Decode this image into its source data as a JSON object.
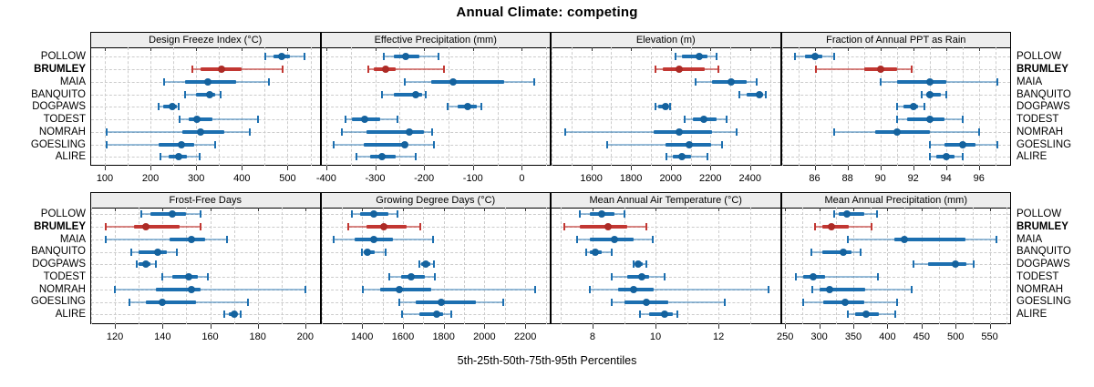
{
  "title": "Annual Climate: competing",
  "xlabel": "5th-25th-50th-75th-95th Percentiles",
  "sites": [
    "POLLOW",
    "BRUMLEY",
    "MAIA",
    "BANQUITO",
    "DOGPAWS",
    "TODEST",
    "NOMRAH",
    "GOESLING",
    "ALIRE"
  ],
  "highlight_site": "BRUMLEY",
  "colors": {
    "series_blue": "#1C6FB0",
    "series_blue_dot": "#14629E",
    "series_blue_faint": "rgba(28,111,176,0.45)",
    "series_red": "#C23732",
    "series_red_dot": "#AD2B26",
    "series_red_faint": "rgba(194,55,50,0.6)",
    "grid": "#CCCCCC",
    "strip_bg": "#EDEDED",
    "panel_border": "#000000",
    "text": "#000000"
  },
  "chart_data": [
    {
      "type": "dotplot-interval",
      "title": "Design Freeze Index (°C)",
      "grid_row": 0,
      "grid_col": 0,
      "xlim": [
        70,
        570
      ],
      "ticks": [
        100,
        200,
        300,
        400,
        500
      ],
      "grid_step": 50,
      "percentile_labels": [
        "p5",
        "p25",
        "p50",
        "p75",
        "p95"
      ],
      "series": [
        {
          "site": "POLLOW",
          "percentiles": [
            451,
            470,
            487,
            505,
            536
          ]
        },
        {
          "site": "BRUMLEY",
          "percentiles": [
            292,
            310,
            355,
            400,
            490
          ]
        },
        {
          "site": "MAIA",
          "percentiles": [
            229,
            275,
            325,
            387,
            459
          ]
        },
        {
          "site": "BANQUITO",
          "percentiles": [
            275,
            300,
            330,
            342,
            353
          ]
        },
        {
          "site": "DOGPAWS",
          "percentiles": [
            218,
            227,
            247,
            257,
            261
          ]
        },
        {
          "site": "TODEST",
          "percentiles": [
            263,
            283,
            302,
            336,
            436
          ]
        },
        {
          "site": "NOMRAH",
          "percentiles": [
            103,
            270,
            309,
            362,
            418
          ]
        },
        {
          "site": "GOESLING",
          "percentiles": [
            103,
            218,
            268,
            296,
            342
          ]
        },
        {
          "site": "ALIRE",
          "percentiles": [
            222,
            240,
            262,
            280,
            308
          ]
        }
      ]
    },
    {
      "type": "dotplot-interval",
      "title": "Effective Precipitation (mm)",
      "grid_row": 0,
      "grid_col": 1,
      "xlim": [
        -410,
        57
      ],
      "ticks": [
        -400,
        -300,
        -200,
        -100,
        0
      ],
      "grid_step": 50,
      "percentile_labels": [
        "p5",
        "p25",
        "p50",
        "p75",
        "p95"
      ],
      "series": [
        {
          "site": "POLLOW",
          "percentiles": [
            -283,
            -262,
            -237,
            -209,
            -170
          ]
        },
        {
          "site": "BRUMLEY",
          "percentiles": [
            -314,
            -302,
            -279,
            -258,
            -159
          ]
        },
        {
          "site": "MAIA",
          "percentiles": [
            -240,
            -185,
            -140,
            -37,
            26
          ]
        },
        {
          "site": "BANQUITO",
          "percentiles": [
            -286,
            -262,
            -218,
            -203,
            -196
          ]
        },
        {
          "site": "DOGPAWS",
          "percentiles": [
            -151,
            -132,
            -110,
            -92,
            -82
          ]
        },
        {
          "site": "TODEST",
          "percentiles": [
            -360,
            -348,
            -322,
            -289,
            -254
          ]
        },
        {
          "site": "NOMRAH",
          "percentiles": [
            -368,
            -317,
            -231,
            -200,
            -183
          ]
        },
        {
          "site": "GOESLING",
          "percentiles": [
            -385,
            -323,
            -240,
            -236,
            -180
          ]
        },
        {
          "site": "ALIRE",
          "percentiles": [
            -338,
            -311,
            -286,
            -258,
            -217
          ]
        }
      ]
    },
    {
      "type": "dotplot-interval",
      "title": "Elevation (m)",
      "grid_row": 0,
      "grid_col": 2,
      "xlim": [
        1400,
        2550
      ],
      "ticks": [
        1600,
        1800,
        2000,
        2200,
        2400
      ],
      "grid_step": 100,
      "percentile_labels": [
        "p5",
        "p25",
        "p50",
        "p75",
        "p95"
      ],
      "series": [
        {
          "site": "POLLOW",
          "percentiles": [
            2024,
            2058,
            2145,
            2186,
            2232
          ]
        },
        {
          "site": "BRUMLEY",
          "percentiles": [
            1921,
            1959,
            2042,
            2171,
            2239
          ]
        },
        {
          "site": "MAIA",
          "percentiles": [
            2126,
            2209,
            2305,
            2383,
            2432
          ]
        },
        {
          "site": "BANQUITO",
          "percentiles": [
            2345,
            2383,
            2447,
            2467,
            2477
          ]
        },
        {
          "site": "DOGPAWS",
          "percentiles": [
            1921,
            1936,
            1974,
            1989,
            1997
          ]
        },
        {
          "site": "TODEST",
          "percentiles": [
            2070,
            2111,
            2168,
            2232,
            2280
          ]
        },
        {
          "site": "NOMRAH",
          "percentiles": [
            1467,
            1914,
            2042,
            2209,
            2330
          ]
        },
        {
          "site": "GOESLING",
          "percentiles": [
            1682,
            1974,
            2095,
            2202,
            2259
          ]
        },
        {
          "site": "ALIRE",
          "percentiles": [
            1979,
            2012,
            2055,
            2103,
            2186
          ]
        }
      ]
    },
    {
      "type": "dotplot-interval",
      "title": "Fraction of Annual PPT as Rain",
      "grid_row": 0,
      "grid_col": 3,
      "xlim": [
        84,
        97.9
      ],
      "ticks": [
        86,
        88,
        90,
        92,
        94,
        96
      ],
      "grid_step": 1,
      "percentile_labels": [
        "p5",
        "p25",
        "p50",
        "p75",
        "p95"
      ],
      "series": [
        {
          "site": "POLLOW",
          "percentiles": [
            84.8,
            85.4,
            86.0,
            86.5,
            87.2
          ]
        },
        {
          "site": "BRUMLEY",
          "percentiles": [
            86.1,
            89.0,
            90.0,
            91.0,
            91.9
          ]
        },
        {
          "site": "MAIA",
          "percentiles": [
            90.0,
            91.0,
            93.0,
            94.0,
            97.1
          ]
        },
        {
          "site": "BANQUITO",
          "percentiles": [
            92.5,
            92.8,
            93.0,
            93.7,
            94.0
          ]
        },
        {
          "site": "DOGPAWS",
          "percentiles": [
            91.0,
            91.4,
            92.0,
            92.3,
            92.7
          ]
        },
        {
          "site": "TODEST",
          "percentiles": [
            91.0,
            91.6,
            93.0,
            93.9,
            95.0
          ]
        },
        {
          "site": "NOMRAH",
          "percentiles": [
            87.2,
            89.7,
            91.0,
            93.0,
            96.0
          ]
        },
        {
          "site": "GOESLING",
          "percentiles": [
            93.0,
            93.9,
            95.0,
            95.8,
            97.1
          ]
        },
        {
          "site": "ALIRE",
          "percentiles": [
            93.0,
            93.4,
            94.0,
            94.5,
            95.0
          ]
        }
      ]
    },
    {
      "type": "dotplot-interval",
      "title": "Frost-Free Days",
      "grid_row": 1,
      "grid_col": 0,
      "xlim": [
        110,
        206
      ],
      "ticks": [
        120,
        140,
        160,
        180,
        200
      ],
      "grid_step": 10,
      "percentile_labels": [
        "p5",
        "p25",
        "p50",
        "p75",
        "p95"
      ],
      "series": [
        {
          "site": "POLLOW",
          "percentiles": [
            131,
            135,
            144,
            150,
            156
          ]
        },
        {
          "site": "BRUMLEY",
          "percentiles": [
            116,
            128,
            133,
            147,
            156
          ]
        },
        {
          "site": "MAIA",
          "percentiles": [
            116,
            143,
            152,
            158,
            167
          ]
        },
        {
          "site": "BANQUITO",
          "percentiles": [
            127,
            130,
            138,
            142,
            146
          ]
        },
        {
          "site": "DOGPAWS",
          "percentiles": [
            129,
            130,
            133,
            135,
            137
          ]
        },
        {
          "site": "TODEST",
          "percentiles": [
            140,
            144,
            151,
            155,
            159
          ]
        },
        {
          "site": "NOMRAH",
          "percentiles": [
            120,
            137,
            152,
            156,
            200
          ]
        },
        {
          "site": "GOESLING",
          "percentiles": [
            126,
            133,
            140,
            154,
            176
          ]
        },
        {
          "site": "ALIRE",
          "percentiles": [
            166,
            168,
            170,
            171,
            173
          ]
        }
      ]
    },
    {
      "type": "dotplot-interval",
      "title": "Growing Degree Days (°C)",
      "grid_row": 1,
      "grid_col": 1,
      "xlim": [
        1200,
        2320
      ],
      "ticks": [
        1400,
        1600,
        1800,
        2000,
        2200
      ],
      "grid_step": 100,
      "percentile_labels": [
        "p5",
        "p25",
        "p50",
        "p75",
        "p95"
      ],
      "series": [
        {
          "site": "POLLOW",
          "percentiles": [
            1348,
            1390,
            1456,
            1530,
            1575
          ]
        },
        {
          "site": "BRUMLEY",
          "percentiles": [
            1330,
            1419,
            1505,
            1619,
            1683
          ]
        },
        {
          "site": "MAIA",
          "percentiles": [
            1261,
            1364,
            1456,
            1553,
            1748
          ]
        },
        {
          "site": "BANQUITO",
          "percentiles": [
            1397,
            1409,
            1427,
            1464,
            1516
          ]
        },
        {
          "site": "DOGPAWS",
          "percentiles": [
            1679,
            1689,
            1711,
            1735,
            1750
          ]
        },
        {
          "site": "TODEST",
          "percentiles": [
            1533,
            1590,
            1641,
            1708,
            1756
          ]
        },
        {
          "site": "NOMRAH",
          "percentiles": [
            1404,
            1486,
            1582,
            1738,
            2249
          ]
        },
        {
          "site": "GOESLING",
          "percentiles": [
            1582,
            1664,
            1787,
            1957,
            2093
          ]
        },
        {
          "site": "ALIRE",
          "percentiles": [
            1597,
            1679,
            1764,
            1797,
            1837
          ]
        }
      ]
    },
    {
      "type": "dotplot-interval",
      "title": "Mean Annual Air Temperature (°C)",
      "grid_row": 1,
      "grid_col": 2,
      "xlim": [
        6.7,
        13.95
      ],
      "ticks": [
        8,
        10,
        12
      ],
      "grid_step": 1,
      "percentile_labels": [
        "p5",
        "p25",
        "p50",
        "p75",
        "p95"
      ],
      "series": [
        {
          "site": "POLLOW",
          "percentiles": [
            7.6,
            7.9,
            8.3,
            8.7,
            9.0
          ]
        },
        {
          "site": "BRUMLEY",
          "percentiles": [
            7.1,
            7.6,
            8.5,
            9.1,
            9.7
          ]
        },
        {
          "site": "MAIA",
          "percentiles": [
            7.5,
            7.9,
            8.7,
            9.3,
            9.9
          ]
        },
        {
          "site": "BANQUITO",
          "percentiles": [
            7.8,
            7.9,
            8.1,
            8.3,
            8.6
          ]
        },
        {
          "site": "DOGPAWS",
          "percentiles": [
            9.3,
            9.35,
            9.45,
            9.6,
            9.7
          ]
        },
        {
          "site": "TODEST",
          "percentiles": [
            8.6,
            9.1,
            9.55,
            9.8,
            10.3
          ]
        },
        {
          "site": "NOMRAH",
          "percentiles": [
            7.9,
            8.8,
            9.3,
            9.95,
            13.6
          ]
        },
        {
          "site": "GOESLING",
          "percentiles": [
            8.6,
            9.0,
            9.7,
            10.4,
            12.2
          ]
        },
        {
          "site": "ALIRE",
          "percentiles": [
            9.5,
            9.8,
            10.3,
            10.55,
            10.7
          ]
        }
      ]
    },
    {
      "type": "dotplot-interval",
      "title": "Mean Annual Precipitation (mm)",
      "grid_row": 1,
      "grid_col": 3,
      "xlim": [
        245,
        580
      ],
      "ticks": [
        250,
        300,
        350,
        400,
        450,
        500,
        550
      ],
      "grid_step": 25,
      "percentile_labels": [
        "p5",
        "p25",
        "p50",
        "p75",
        "p95"
      ],
      "series": [
        {
          "site": "POLLOW",
          "percentiles": [
            322,
            328,
            340,
            366,
            385
          ]
        },
        {
          "site": "BRUMLEY",
          "percentiles": [
            294,
            304,
            318,
            344,
            376
          ]
        },
        {
          "site": "MAIA",
          "percentiles": [
            342,
            410,
            425,
            515,
            560
          ]
        },
        {
          "site": "BANQUITO",
          "percentiles": [
            288,
            304,
            335,
            348,
            360
          ]
        },
        {
          "site": "DOGPAWS",
          "percentiles": [
            438,
            459,
            500,
            516,
            527
          ]
        },
        {
          "site": "TODEST",
          "percentiles": [
            265,
            277,
            291,
            308,
            386
          ]
        },
        {
          "site": "NOMRAH",
          "percentiles": [
            290,
            300,
            315,
            368,
            435
          ]
        },
        {
          "site": "GOESLING",
          "percentiles": [
            277,
            306,
            338,
            366,
            414
          ]
        },
        {
          "site": "ALIRE",
          "percentiles": [
            342,
            353,
            369,
            388,
            412
          ]
        }
      ]
    }
  ]
}
